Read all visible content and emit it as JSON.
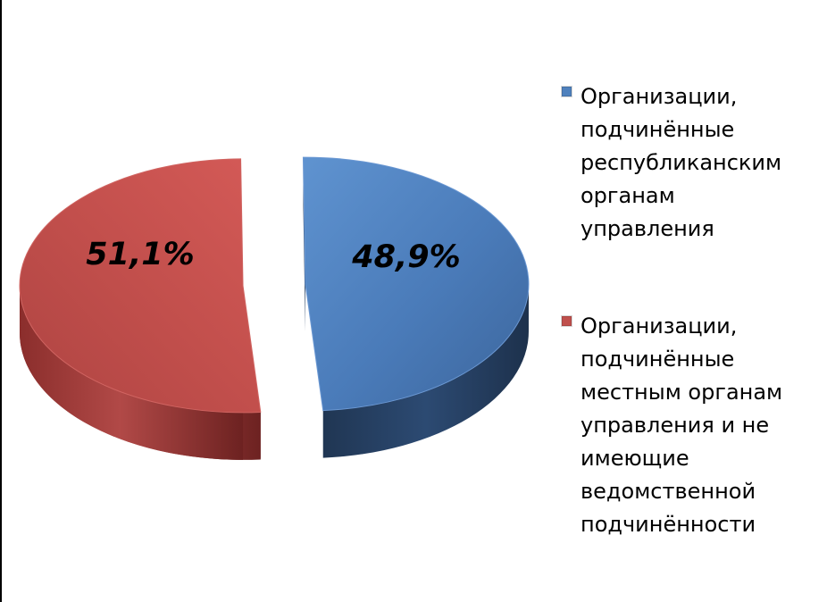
{
  "chart_data": {
    "type": "pie",
    "title": "",
    "series": [
      {
        "name": "",
        "values": [
          48.9,
          51.1
        ],
        "labels": [
          "48,9%",
          "51,1%"
        ],
        "categories": [
          "Организации,\nподчинённые\nреспубликанским\nорганам управления",
          "Организации,\nподчинённые\nместным органам\nуправления и не\nимеющие\nведомственной\nподчинённости"
        ],
        "colors": [
          "#4f81bd",
          "#c0504d"
        ],
        "side_colors": [
          "#263f60",
          "#6a2120"
        ]
      }
    ],
    "legend_position": "right",
    "style": "3d exploded"
  }
}
